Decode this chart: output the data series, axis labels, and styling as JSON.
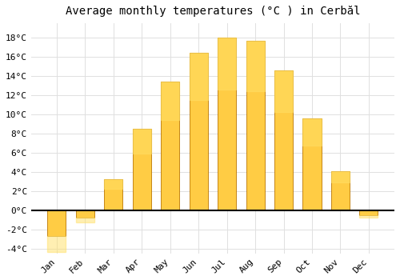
{
  "title": "Average monthly temperatures (°C ) in Cerbăl",
  "months": [
    "Jan",
    "Feb",
    "Mar",
    "Apr",
    "May",
    "Jun",
    "Jul",
    "Aug",
    "Sep",
    "Oct",
    "Nov",
    "Dec"
  ],
  "values": [
    -2.7,
    -0.8,
    3.2,
    8.5,
    13.4,
    16.4,
    18.0,
    17.7,
    14.6,
    9.6,
    4.1,
    -0.5
  ],
  "bar_color_top": "#FFCC44",
  "bar_color_bottom": "#FF9900",
  "bar_edge_color": "#BB7700",
  "background_color": "#ffffff",
  "plot_bg_color": "#ffffff",
  "grid_color": "#e0e0e0",
  "ylim": [
    -4.5,
    19.5
  ],
  "yticks": [
    -4,
    -2,
    0,
    2,
    4,
    6,
    8,
    10,
    12,
    14,
    16,
    18
  ],
  "title_fontsize": 10,
  "tick_fontsize": 8,
  "font_family": "monospace",
  "bar_width": 0.65
}
